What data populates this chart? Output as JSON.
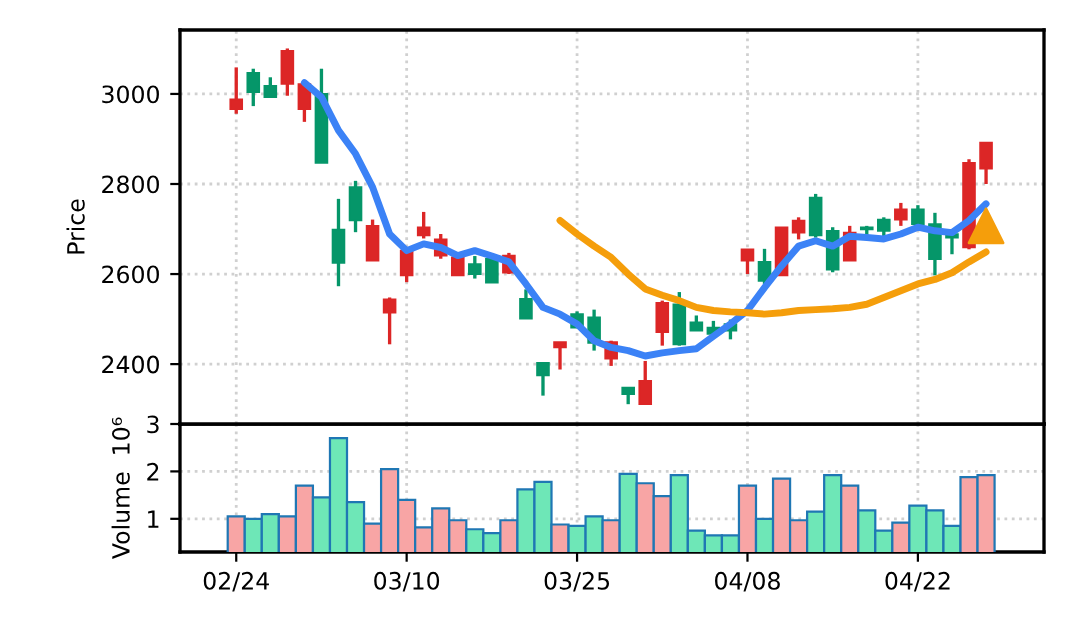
{
  "chart_data": [
    {
      "type": "candlestick",
      "ylabel": "Price",
      "categories": [
        null,
        null,
        null,
        null,
        null,
        null,
        null,
        null,
        null,
        null,
        null,
        null,
        null,
        null,
        null,
        null,
        null,
        null,
        null,
        null,
        null,
        null,
        null,
        null,
        null,
        null,
        null,
        null,
        null,
        null,
        null,
        null,
        null,
        null,
        null,
        null,
        null,
        null,
        null,
        null,
        null,
        null,
        null,
        null,
        null
      ],
      "ohlc": [
        [
          2966,
          3059,
          2956,
          2988
        ],
        [
          3047,
          3056,
          2973,
          3004
        ],
        [
          3018,
          3037,
          2993,
          2993
        ],
        [
          3022,
          3101,
          2996,
          3096
        ],
        [
          2966,
          3030,
          2938,
          3022
        ],
        [
          3000,
          3056,
          2847,
          2847
        ],
        [
          2699,
          2767,
          2573,
          2625
        ],
        [
          2793,
          2807,
          2693,
          2719
        ],
        [
          2630,
          2721,
          2630,
          2707
        ],
        [
          2514,
          2548,
          2444,
          2544
        ],
        [
          2597,
          2659,
          2582,
          2652
        ],
        [
          2686,
          2738,
          2679,
          2704
        ],
        [
          2641,
          2689,
          2634,
          2677
        ],
        [
          2597,
          2644,
          2597,
          2637
        ],
        [
          2622,
          2640,
          2590,
          2600
        ],
        [
          2634,
          2637,
          2581,
          2581
        ],
        [
          2603,
          2647,
          2600,
          2641
        ],
        [
          2545,
          2566,
          2501,
          2501
        ],
        [
          2403,
          2403,
          2330,
          2375
        ],
        [
          2437,
          2449,
          2388,
          2449
        ],
        [
          2511,
          2517,
          2481,
          2481
        ],
        [
          2504,
          2521,
          2430,
          2447
        ],
        [
          2412,
          2452,
          2396,
          2449
        ],
        [
          2348,
          2348,
          2311,
          2333
        ],
        [
          2311,
          2407,
          2311,
          2363
        ],
        [
          2471,
          2541,
          2441,
          2536
        ],
        [
          2533,
          2560,
          2441,
          2444
        ],
        [
          2493,
          2508,
          2474,
          2474
        ],
        [
          2481,
          2496,
          2467,
          2467
        ],
        [
          2489,
          2499,
          2455,
          2474
        ],
        [
          2630,
          2655,
          2600,
          2655
        ],
        [
          2627,
          2656,
          2578,
          2585
        ],
        [
          2597,
          2704,
          2597,
          2704
        ],
        [
          2692,
          2726,
          2677,
          2719
        ],
        [
          2770,
          2778,
          2681,
          2686
        ],
        [
          2696,
          2704,
          2604,
          2610
        ],
        [
          2630,
          2707,
          2630,
          2692
        ],
        [
          2704,
          2707,
          2681,
          2699
        ],
        [
          2721,
          2726,
          2681,
          2696
        ],
        [
          2721,
          2758,
          2707,
          2744
        ],
        [
          2744,
          2753,
          2707,
          2711
        ],
        [
          2711,
          2736,
          2597,
          2633
        ],
        [
          2689,
          2696,
          2644,
          2681
        ],
        [
          2659,
          2855,
          2655,
          2847
        ],
        [
          2834,
          2892,
          2800,
          2892
        ]
      ],
      "colors": [
        "#dc2626",
        "#059669",
        "#059669",
        "#dc2626",
        "#dc2626",
        "#059669",
        "#059669",
        "#059669",
        "#dc2626",
        "#dc2626",
        "#dc2626",
        "#dc2626",
        "#dc2626",
        "#dc2626",
        "#059669",
        "#059669",
        "#dc2626",
        "#059669",
        "#059669",
        "#dc2626",
        "#059669",
        "#059669",
        "#dc2626",
        "#059669",
        "#dc2626",
        "#dc2626",
        "#059669",
        "#059669",
        "#059669",
        "#059669",
        "#dc2626",
        "#059669",
        "#dc2626",
        "#dc2626",
        "#059669",
        "#059669",
        "#dc2626",
        "#059669",
        "#059669",
        "#dc2626",
        "#059669",
        "#059669",
        "#059669",
        "#dc2626",
        "#dc2626"
      ],
      "series": [
        {
          "type": "line",
          "color": "#3b82f6",
          "values": [
            null,
            null,
            null,
            null,
            3025,
            2993,
            2919,
            2867,
            2793,
            2689,
            2652,
            2667,
            2659,
            2641,
            2652,
            2640,
            2627,
            2578,
            2526,
            2511,
            2489,
            2452,
            2437,
            2430,
            2418,
            2425,
            2430,
            2434,
            2462,
            2489,
            2519,
            2570,
            2618,
            2662,
            2674,
            2662,
            2684,
            2681,
            2678,
            2689,
            2704,
            2696,
            2692,
            2719,
            2756
          ]
        },
        {
          "type": "line",
          "color": "#f59e0b",
          "values": [
            null,
            null,
            null,
            null,
            null,
            null,
            null,
            null,
            null,
            null,
            null,
            null,
            null,
            null,
            null,
            null,
            null,
            null,
            null,
            2719,
            2689,
            2662,
            2637,
            2600,
            2567,
            2553,
            2541,
            2526,
            2519,
            2516,
            2514,
            2511,
            2514,
            2519,
            2521,
            2523,
            2526,
            2533,
            2548,
            2563,
            2578,
            2588,
            2603,
            2627,
            2649
          ]
        },
        {
          "type": "scatter",
          "color": "#f59e0b",
          "marker": "triangle",
          "values": [
            null,
            null,
            null,
            null,
            null,
            null,
            null,
            null,
            null,
            null,
            null,
            null,
            null,
            null,
            null,
            null,
            null,
            null,
            null,
            null,
            null,
            null,
            null,
            null,
            null,
            null,
            null,
            null,
            null,
            null,
            null,
            null,
            null,
            null,
            null,
            null,
            null,
            null,
            null,
            null,
            null,
            null,
            null,
            null,
            2707
          ]
        }
      ],
      "ylim": [
        2267,
        3142
      ],
      "yticks": [
        2400,
        2600,
        2800,
        3000
      ],
      "grid": true,
      "tick_labels": "y"
    },
    {
      "type": "bar",
      "ylabel": "Volume  10⁶",
      "categories": [
        "02/24",
        null,
        null,
        null,
        null,
        null,
        null,
        null,
        null,
        null,
        "03/10",
        null,
        null,
        null,
        null,
        null,
        null,
        null,
        null,
        null,
        "03/25",
        null,
        null,
        null,
        null,
        null,
        null,
        null,
        null,
        null,
        "04/08",
        null,
        null,
        null,
        null,
        null,
        null,
        null,
        null,
        null,
        "04/22",
        null,
        null,
        null,
        null
      ],
      "values": [
        1.05,
        1.0,
        1.1,
        1.05,
        1.7,
        1.45,
        2.7,
        1.35,
        0.9,
        2.05,
        1.4,
        0.82,
        1.22,
        0.97,
        0.78,
        0.7,
        0.97,
        1.62,
        1.78,
        0.88,
        0.85,
        1.05,
        0.97,
        1.95,
        1.75,
        1.48,
        1.92,
        0.75,
        0.65,
        0.65,
        1.7,
        1.0,
        1.85,
        0.97,
        1.15,
        1.92,
        1.7,
        1.18,
        0.75,
        0.92,
        1.28,
        1.18,
        0.85,
        1.88,
        1.92
      ],
      "colors": [
        "#f8a5a5",
        "#6ee7b7",
        "#6ee7b7",
        "#f8a5a5",
        "#f8a5a5",
        "#6ee7b7",
        "#6ee7b7",
        "#6ee7b7",
        "#f8a5a5",
        "#f8a5a5",
        "#f8a5a5",
        "#f8a5a5",
        "#f8a5a5",
        "#f8a5a5",
        "#6ee7b7",
        "#6ee7b7",
        "#f8a5a5",
        "#6ee7b7",
        "#6ee7b7",
        "#f8a5a5",
        "#6ee7b7",
        "#6ee7b7",
        "#f8a5a5",
        "#6ee7b7",
        "#f8a5a5",
        "#f8a5a5",
        "#6ee7b7",
        "#6ee7b7",
        "#6ee7b7",
        "#6ee7b7",
        "#f8a5a5",
        "#6ee7b7",
        "#f8a5a5",
        "#f8a5a5",
        "#6ee7b7",
        "#6ee7b7",
        "#f8a5a5",
        "#6ee7b7",
        "#6ee7b7",
        "#f8a5a5",
        "#6ee7b7",
        "#6ee7b7",
        "#6ee7b7",
        "#f8a5a5",
        "#f8a5a5"
      ],
      "ylim": [
        0.3,
        3
      ],
      "yticks": [
        1,
        2,
        3
      ],
      "grid": true
    }
  ]
}
